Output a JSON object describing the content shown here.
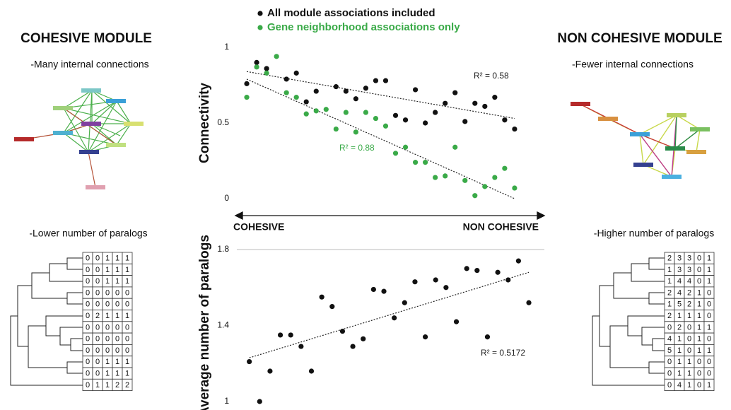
{
  "chart_data": [
    {
      "type": "scatter",
      "ylabel": "Connectivity",
      "xlabel_start": "COHESIVE",
      "xlabel_end": "NON COHESIVE",
      "xlim": [
        0,
        31
      ],
      "ylim": [
        0,
        1
      ],
      "yticks": [
        0,
        0.5,
        1
      ],
      "series": [
        {
          "name": "All module associations included",
          "color": "#111111",
          "x": [
            1,
            2,
            3,
            5,
            6,
            7,
            8,
            10,
            11,
            12,
            13,
            14,
            15,
            16,
            17,
            18,
            19,
            20,
            21,
            22,
            23,
            24,
            25,
            26,
            27,
            28
          ],
          "values": [
            0.76,
            0.9,
            0.86,
            0.79,
            0.83,
            0.64,
            0.71,
            0.74,
            0.71,
            0.66,
            0.73,
            0.78,
            0.78,
            0.55,
            0.52,
            0.72,
            0.5,
            0.57,
            0.63,
            0.7,
            0.51,
            0.63,
            0.61,
            0.67,
            0.52,
            0.46
          ],
          "trend": {
            "x": [
              1,
              28
            ],
            "values": [
              0.84,
              0.53
            ],
            "label": "R² = 0.58"
          }
        },
        {
          "name": "Gene neighborhood associations only",
          "color": "#3aaa48",
          "x": [
            1,
            2,
            3,
            4,
            5,
            6,
            7,
            8,
            9,
            10,
            11,
            12,
            13,
            14,
            15,
            16,
            17,
            18,
            19,
            20,
            21,
            22,
            23,
            24,
            25,
            26,
            27,
            28
          ],
          "values": [
            0.67,
            0.87,
            0.83,
            0.94,
            0.7,
            0.67,
            0.56,
            0.58,
            0.59,
            0.46,
            0.57,
            0.44,
            0.57,
            0.53,
            0.48,
            0.3,
            0.34,
            0.24,
            0.24,
            0.14,
            0.15,
            0.34,
            0.12,
            0.02,
            0.08,
            0.14,
            0.2,
            0.07
          ],
          "trend": {
            "x": [
              1,
              28
            ],
            "values": [
              0.79,
              0.0
            ],
            "label": "R² = 0.88"
          }
        }
      ]
    },
    {
      "type": "scatter",
      "ylabel": "Average number of paralogs",
      "xlim": [
        0,
        29.5
      ],
      "ylim": [
        1,
        1.8
      ],
      "yticks": [
        1,
        1.4,
        1.8
      ],
      "series": [
        {
          "color": "#111111",
          "x": [
            1,
            2,
            3,
            4,
            5,
            6,
            7,
            8,
            9,
            10,
            11,
            12,
            13,
            14,
            15,
            16,
            17,
            18,
            19,
            20,
            21,
            22,
            23,
            24,
            25,
            26,
            27,
            28
          ],
          "values": [
            1.21,
            1.0,
            1.16,
            1.35,
            1.35,
            1.29,
            1.16,
            1.55,
            1.5,
            1.37,
            1.29,
            1.33,
            1.59,
            1.58,
            1.44,
            1.52,
            1.63,
            1.34,
            1.64,
            1.6,
            1.42,
            1.7,
            1.69,
            1.34,
            1.68,
            1.64,
            1.74,
            1.52
          ],
          "trend": {
            "x": [
              1,
              28
            ],
            "values": [
              1.23,
              1.68
            ],
            "label": "R² = 0.5172"
          }
        }
      ]
    }
  ],
  "left_panel": {
    "title": "COHESIVE MODULE",
    "network_caption": "-Many internal connections",
    "table_caption": "-Lower number of paralogs",
    "table": [
      [
        0,
        0,
        1,
        1,
        1
      ],
      [
        0,
        0,
        1,
        1,
        1
      ],
      [
        0,
        0,
        1,
        1,
        1
      ],
      [
        0,
        0,
        0,
        0,
        0
      ],
      [
        0,
        0,
        0,
        0,
        0
      ],
      [
        0,
        2,
        1,
        1,
        1
      ],
      [
        0,
        0,
        0,
        0,
        0
      ],
      [
        0,
        0,
        0,
        0,
        0
      ],
      [
        0,
        0,
        0,
        0,
        0
      ],
      [
        0,
        0,
        1,
        1,
        1
      ],
      [
        0,
        0,
        1,
        1,
        1
      ],
      [
        0,
        1,
        1,
        2,
        2
      ]
    ]
  },
  "right_panel": {
    "title": "NON COHESIVE MODULE",
    "network_caption": "-Fewer internal connections",
    "table_caption": "-Higher number of paralogs",
    "table": [
      [
        2,
        3,
        3,
        0,
        1
      ],
      [
        1,
        3,
        3,
        0,
        1
      ],
      [
        1,
        4,
        4,
        0,
        1
      ],
      [
        2,
        4,
        2,
        1,
        0
      ],
      [
        1,
        5,
        2,
        1,
        0
      ],
      [
        2,
        1,
        1,
        1,
        0
      ],
      [
        0,
        2,
        0,
        1,
        1
      ],
      [
        4,
        1,
        0,
        1,
        0
      ],
      [
        5,
        1,
        0,
        1,
        1
      ],
      [
        0,
        1,
        1,
        0,
        0
      ],
      [
        0,
        1,
        1,
        0,
        0
      ],
      [
        0,
        4,
        1,
        0,
        1
      ]
    ]
  }
}
